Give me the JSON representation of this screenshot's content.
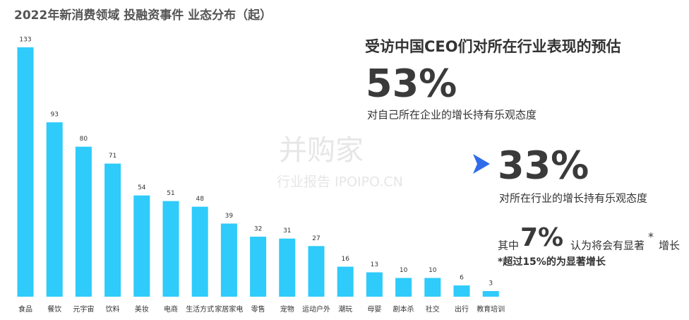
{
  "chart_data": {
    "type": "bar",
    "title": "2022年新消费领域 投融资事件 业态分布（起）",
    "categories": [
      "食品",
      "餐饮",
      "元宇宙",
      "饮料",
      "美妆",
      "电商",
      "生活方式",
      "家居家电",
      "零售",
      "宠物",
      "运动户外",
      "潮玩",
      "母婴",
      "剧本杀",
      "社交",
      "出行",
      "教育培训"
    ],
    "values": [
      133,
      93,
      80,
      71,
      54,
      51,
      48,
      39,
      32,
      31,
      27,
      16,
      13,
      10,
      10,
      6,
      3
    ],
    "color": "#2ecbfb"
  },
  "panel": {
    "heading": "受访中国CEO们对所在行业表现的预估",
    "stat1": {
      "value": "53%",
      "text": "对自己所在企业的增长持有乐观态度"
    },
    "stat2": {
      "value": "33%",
      "text": "对所在行业的增长持有乐观态度"
    },
    "stat3": {
      "prefix": "其中",
      "value": "7%",
      "text": "认为将会有显著",
      "star": "*",
      "suffix": "增长"
    },
    "note": "*超过15%的为显著增长"
  },
  "watermark": {
    "brand": "并购家",
    "sub": "行业报告 IPOIPO.CN"
  }
}
